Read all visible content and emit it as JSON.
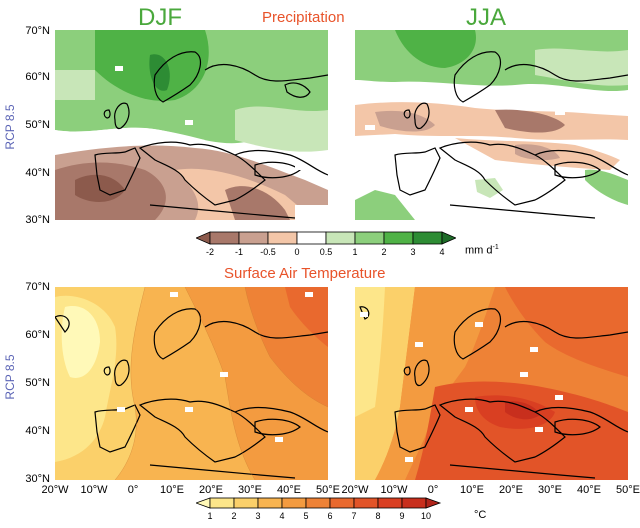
{
  "seasons": {
    "left": "DJF",
    "right": "JJA"
  },
  "precip": {
    "title": "Precipitation",
    "row_label": "RCP 8.5",
    "colorbar": {
      "ticks": [
        "-2",
        "-1",
        "-0.5",
        "0",
        "0.5",
        "1",
        "2",
        "3",
        "4"
      ],
      "colors": [
        "#8c5a4c",
        "#a8786a",
        "#c9a090",
        "#f3c6a8",
        "#ffffff",
        "#c8e6b8",
        "#8ccf7c",
        "#4fb246",
        "#2d8c34",
        "#1e6b28"
      ],
      "unit": "mm d",
      "unit_sup": "-1"
    },
    "lat_labels": [
      "70°N",
      "60°N",
      "50°N",
      "40°N",
      "30°N"
    ]
  },
  "temp": {
    "title": "Surface Air Temperature",
    "row_label": "RCP 8.5",
    "colorbar": {
      "ticks": [
        "1",
        "2",
        "3",
        "4",
        "5",
        "6",
        "7",
        "8",
        "9",
        "10"
      ],
      "colors": [
        "#fff9b8",
        "#fde68a",
        "#fbd06a",
        "#f8b450",
        "#f39b40",
        "#ee8236",
        "#e9692e",
        "#e25428",
        "#d93f22",
        "#c82f1d",
        "#b0241a"
      ],
      "unit": "°C"
    },
    "lat_labels": [
      "70°N",
      "60°N",
      "50°N",
      "40°N",
      "30°N"
    ]
  },
  "lon_labels_left": [
    "20°W",
    "10°W",
    "0°",
    "10°E",
    "20°E",
    "30°E",
    "40°E",
    "50°E"
  ],
  "lon_labels_right": [
    "20°W",
    "10°W",
    "0°",
    "10°E",
    "20°E",
    "30°E",
    "40°E",
    "50°E"
  ]
}
